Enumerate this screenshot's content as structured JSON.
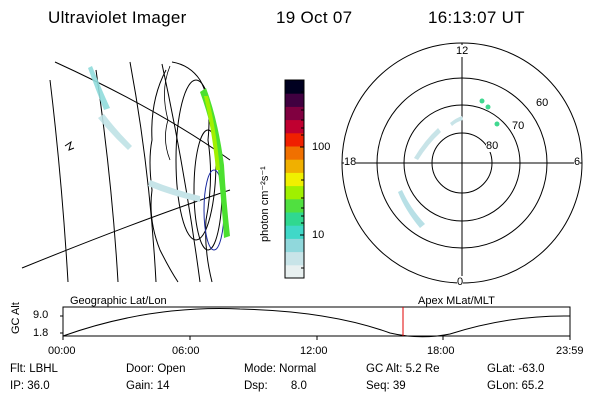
{
  "header": {
    "instrument": "Ultraviolet Imager",
    "date": "19 Oct 07",
    "time": "16:13:07 UT"
  },
  "colorbar": {
    "label": "photon cm⁻²s⁻¹",
    "ticks": [
      "100",
      "10"
    ],
    "scale": "log",
    "colors": [
      "#e8f0f0",
      "#c8e4e8",
      "#90d8dc",
      "#40d8c8",
      "#30d890",
      "#50e040",
      "#a0f000",
      "#f0f000",
      "#f0b000",
      "#f07000",
      "#f02000",
      "#c00030",
      "#800040",
      "#400040",
      "#000020"
    ]
  },
  "polar_plot": {
    "labels_mlt": [
      "12",
      "18",
      "6",
      "0"
    ],
    "labels_lat": [
      "60",
      "70",
      "80"
    ]
  },
  "timeline": {
    "left_title": "Geographic Lat/Lon",
    "right_title": "Apex MLat/MLT",
    "y_label": "GC Alt",
    "y_ticks": [
      "9.0",
      "1.8"
    ],
    "x_ticks": [
      "00:00",
      "06:00",
      "12:00",
      "18:00",
      "23:59"
    ],
    "marker_color": "#e00000"
  },
  "info": {
    "row1": [
      {
        "label": "Flt:",
        "value": "LBHL"
      },
      {
        "label": "Door:",
        "value": "Open"
      },
      {
        "label": "Mode:",
        "value": "Normal"
      },
      {
        "label": "GC Alt:",
        "value": "5.2 Re"
      },
      {
        "label": "GLat:",
        "value": "-63.0"
      }
    ],
    "row2": [
      {
        "label": "IP:",
        "value": "36.0"
      },
      {
        "label": "Gain:",
        "value": "14"
      },
      {
        "label": "Dsp:",
        "value": "8.0"
      },
      {
        "label": "Seq:",
        "value": "39"
      },
      {
        "label": "GLon:",
        "value": "65.2"
      }
    ]
  }
}
